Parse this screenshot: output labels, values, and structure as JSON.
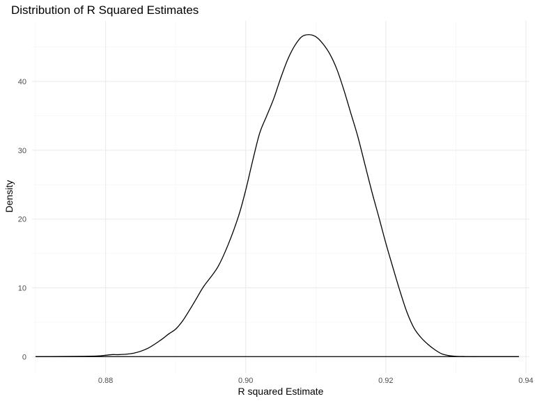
{
  "chart_data": {
    "type": "line",
    "title": "Distribution of R Squared Estimates",
    "xlabel": "R squared Estimate",
    "ylabel": "Density",
    "xlim": [
      0.8695,
      0.9405
    ],
    "ylim": [
      -2.4,
      48.8
    ],
    "xticks": [
      0.88,
      0.9,
      0.92,
      0.94
    ],
    "xtick_labels": [
      "0.88",
      "0.90",
      "0.92",
      "0.94"
    ],
    "yticks": [
      0,
      10,
      20,
      30,
      40
    ],
    "ytick_labels": [
      "0",
      "10",
      "20",
      "30",
      "40"
    ],
    "grid": true,
    "legend": "none",
    "line_color": "#000000",
    "series": [
      {
        "x": [
          0.87,
          0.874,
          0.877,
          0.879,
          0.88,
          0.881,
          0.882,
          0.884,
          0.886,
          0.888,
          0.889,
          0.89,
          0.891,
          0.892,
          0.893,
          0.894,
          0.896,
          0.8975,
          0.899,
          0.9,
          0.901,
          0.902,
          0.903,
          0.904,
          0.905,
          0.906,
          0.907,
          0.908,
          0.909,
          0.91,
          0.911,
          0.912,
          0.913,
          0.914,
          0.915,
          0.916,
          0.917,
          0.918,
          0.919,
          0.92,
          0.921,
          0.922,
          0.923,
          0.924,
          0.925,
          0.926,
          0.927,
          0.928,
          0.929,
          0.93,
          0.931,
          0.932,
          0.933,
          0.934,
          0.935,
          0.936,
          0.937,
          0.939
        ],
        "y": [
          0.0,
          0.02,
          0.05,
          0.1,
          0.2,
          0.3,
          0.3,
          0.5,
          1.2,
          2.5,
          3.3,
          4.0,
          5.2,
          6.8,
          8.5,
          10.2,
          13.0,
          16.3,
          20.5,
          24.2,
          28.5,
          32.5,
          35.0,
          37.5,
          40.5,
          43.2,
          45.2,
          46.5,
          46.8,
          46.5,
          45.5,
          44.0,
          41.8,
          38.8,
          35.4,
          32.0,
          28.0,
          24.0,
          20.3,
          16.5,
          13.0,
          9.6,
          6.5,
          4.2,
          2.8,
          1.8,
          1.0,
          0.4,
          0.15,
          0.05,
          0.02,
          0.0,
          0.0,
          0.0,
          0.0,
          0.0,
          0.0,
          0.0
        ]
      }
    ]
  }
}
